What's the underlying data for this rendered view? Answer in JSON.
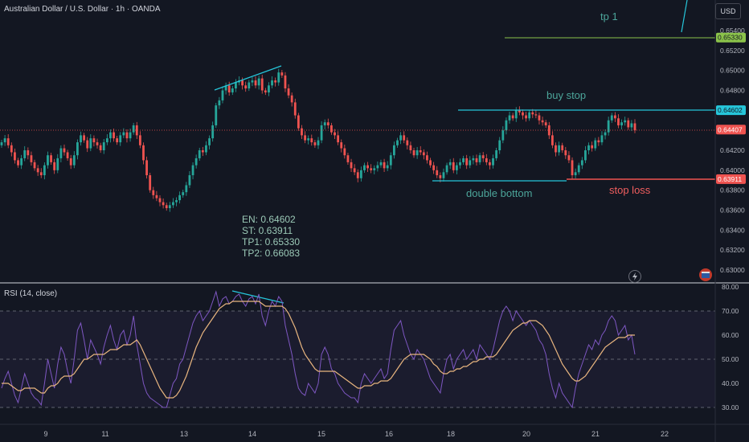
{
  "header": {
    "symbol": "Australian Dollar / U.S. Dollar · 1h · OANDA",
    "currency": "USD"
  },
  "rsi_panel": {
    "title": "RSI (14, close)"
  },
  "notes": {
    "en": "EN: 0.64602",
    "st": "ST: 0.63911",
    "tp1": "TP1: 0.65330",
    "tp2": "TP2: 0.66083"
  },
  "annotations": {
    "tp1": "tp 1",
    "buy_stop": "buy stop",
    "double_bottom": "double bottom",
    "stop_loss": "stop loss"
  },
  "colors": {
    "up": "#26a69a",
    "down": "#ef5350",
    "background": "#131722",
    "rsi": "#7e57c2",
    "rsi_ma": "#e8b57f",
    "tp_line": "#8bc34a",
    "buy_line": "#26c6da",
    "stop_line": "#ef5350"
  },
  "chart_data": [
    {
      "type": "candlestick",
      "title": "Australian Dollar / U.S. Dollar · 1h · OANDA",
      "y_axis_ticks": [
        "0.65400",
        "0.65200",
        "0.65000",
        "0.64800",
        "0.64600",
        "0.64400",
        "0.64200",
        "0.64000",
        "0.63800",
        "0.63600",
        "0.63400",
        "0.63200",
        "0.63000"
      ],
      "ylim": [
        0.6295,
        0.656
      ],
      "x_ticks": [
        "9",
        "11",
        "13",
        "14",
        "15",
        "16",
        "18",
        "20",
        "21",
        "22"
      ],
      "price_labels": {
        "tp1": "0.65330",
        "buy_stop": "0.64602",
        "last_price": "0.64407",
        "stop_loss": "0.63911"
      },
      "levels": {
        "tp1": 0.6533,
        "buy_stop": 0.64602,
        "last_price": 0.64407,
        "stop_loss": 0.63911
      },
      "grid": false,
      "close_series": [
        0.6428,
        0.6432,
        0.6425,
        0.6418,
        0.641,
        0.6405,
        0.6412,
        0.642,
        0.6415,
        0.6408,
        0.6402,
        0.6398,
        0.6395,
        0.6405,
        0.6415,
        0.6408,
        0.64,
        0.6412,
        0.6422,
        0.6418,
        0.6412,
        0.6405,
        0.6415,
        0.6428,
        0.6435,
        0.643,
        0.6422,
        0.6432,
        0.6428,
        0.6425,
        0.642,
        0.6428,
        0.6432,
        0.6438,
        0.6432,
        0.6428,
        0.6435,
        0.6438,
        0.6432,
        0.6438,
        0.6445,
        0.6435,
        0.6425,
        0.641,
        0.6395,
        0.638,
        0.6375,
        0.6372,
        0.6368,
        0.6365,
        0.6362,
        0.6365,
        0.6368,
        0.637,
        0.6375,
        0.6378,
        0.6385,
        0.6395,
        0.6405,
        0.6412,
        0.642,
        0.6418,
        0.6425,
        0.6432,
        0.6445,
        0.6465,
        0.647,
        0.648,
        0.6485,
        0.6478,
        0.6482,
        0.6488,
        0.649,
        0.6485,
        0.6482,
        0.6488,
        0.649,
        0.6485,
        0.6492,
        0.648,
        0.6478,
        0.6485,
        0.649,
        0.6488,
        0.6498,
        0.6495,
        0.6482,
        0.6475,
        0.6468,
        0.6455,
        0.6442,
        0.6435,
        0.643,
        0.6432,
        0.6428,
        0.6425,
        0.643,
        0.6445,
        0.6448,
        0.6445,
        0.6438,
        0.6435,
        0.6428,
        0.6422,
        0.6415,
        0.6408,
        0.6402,
        0.6398,
        0.6392,
        0.64,
        0.6405,
        0.6402,
        0.64,
        0.6402,
        0.6405,
        0.6408,
        0.6402,
        0.6405,
        0.6415,
        0.6425,
        0.643,
        0.6435,
        0.643,
        0.6425,
        0.642,
        0.6415,
        0.642,
        0.6418,
        0.6415,
        0.641,
        0.6405,
        0.64,
        0.6395,
        0.6392,
        0.6398,
        0.6405,
        0.6408,
        0.64,
        0.6405,
        0.6408,
        0.6412,
        0.6405,
        0.641,
        0.6412,
        0.6408,
        0.6415,
        0.6412,
        0.6408,
        0.6405,
        0.6412,
        0.642,
        0.643,
        0.644,
        0.645,
        0.6455,
        0.6452,
        0.646,
        0.6458,
        0.6455,
        0.6452,
        0.6458,
        0.6456,
        0.6455,
        0.645,
        0.6448,
        0.6445,
        0.6435,
        0.6425,
        0.6418,
        0.6425,
        0.642,
        0.6415,
        0.641,
        0.6395,
        0.6398,
        0.6405,
        0.641,
        0.642,
        0.6425,
        0.6422,
        0.643,
        0.6428,
        0.6435,
        0.6438,
        0.645,
        0.6455,
        0.6452,
        0.6445,
        0.6448,
        0.645,
        0.6443,
        0.6447,
        0.644
      ]
    },
    {
      "type": "line",
      "title": "RSI (14, close)",
      "y_axis_ticks": [
        "80.00",
        "70.00",
        "60.00",
        "50.00",
        "40.00",
        "30.00"
      ],
      "ylim": [
        27,
        81
      ],
      "reference_lines": [
        70,
        50,
        30
      ],
      "series": [
        {
          "name": "RSI (14, close)",
          "values": [
            38,
            42,
            45,
            40,
            35,
            32,
            38,
            44,
            40,
            36,
            34,
            33,
            31,
            40,
            50,
            44,
            38,
            48,
            55,
            52,
            45,
            40,
            50,
            62,
            65,
            58,
            50,
            58,
            55,
            52,
            48,
            55,
            60,
            64,
            58,
            54,
            60,
            62,
            56,
            60,
            68,
            56,
            48,
            40,
            36,
            34,
            33,
            32,
            31,
            30,
            30,
            35,
            40,
            42,
            48,
            50,
            55,
            60,
            65,
            68,
            70,
            66,
            68,
            70,
            74,
            78,
            72,
            75,
            76,
            73,
            74,
            76,
            77,
            74,
            72,
            75,
            76,
            73,
            77,
            68,
            64,
            70,
            74,
            72,
            76,
            74,
            64,
            58,
            52,
            44,
            38,
            36,
            35,
            40,
            38,
            36,
            40,
            52,
            55,
            52,
            46,
            44,
            40,
            38,
            36,
            35,
            34,
            34,
            32,
            40,
            44,
            42,
            40,
            42,
            44,
            46,
            42,
            44,
            54,
            62,
            64,
            66,
            60,
            56,
            52,
            50,
            54,
            52,
            50,
            46,
            42,
            40,
            38,
            36,
            44,
            50,
            52,
            46,
            50,
            52,
            54,
            50,
            52,
            54,
            50,
            56,
            54,
            52,
            50,
            54,
            60,
            66,
            70,
            72,
            70,
            66,
            70,
            68,
            66,
            64,
            66,
            64,
            62,
            58,
            56,
            52,
            44,
            38,
            34,
            40,
            36,
            34,
            32,
            30,
            38,
            44,
            48,
            52,
            56,
            54,
            58,
            56,
            60,
            62,
            66,
            68,
            66,
            60,
            62,
            64,
            58,
            60,
            52
          ]
        },
        {
          "name": "",
          "values": [
            40,
            40,
            40,
            39,
            38,
            37,
            37,
            38,
            38,
            38,
            38,
            37,
            36,
            36,
            38,
            39,
            39,
            40,
            42,
            43,
            43,
            43,
            44,
            46,
            48,
            50,
            50,
            51,
            52,
            52,
            52,
            52,
            53,
            54,
            54,
            54,
            55,
            56,
            56,
            56,
            57,
            58,
            56,
            53,
            50,
            47,
            44,
            41,
            38,
            36,
            34,
            34,
            34,
            35,
            37,
            40,
            43,
            47,
            51,
            55,
            58,
            61,
            63,
            65,
            67,
            69,
            71,
            72,
            73,
            73,
            74,
            74,
            74,
            74,
            74,
            74,
            74,
            74,
            74,
            73,
            72,
            72,
            72,
            72,
            72,
            72,
            71,
            69,
            66,
            63,
            59,
            55,
            52,
            50,
            48,
            46,
            45,
            45,
            45,
            45,
            45,
            45,
            44,
            43,
            42,
            41,
            40,
            39,
            38,
            38,
            39,
            39,
            39,
            40,
            40,
            41,
            41,
            41,
            42,
            44,
            46,
            48,
            50,
            51,
            52,
            52,
            52,
            52,
            52,
            51,
            50,
            48,
            47,
            45,
            44,
            44,
            45,
            45,
            46,
            46,
            47,
            47,
            48,
            49,
            49,
            50,
            50,
            51,
            51,
            51,
            52,
            54,
            56,
            58,
            60,
            62,
            63,
            64,
            65,
            65,
            66,
            66,
            66,
            65,
            64,
            62,
            60,
            57,
            54,
            51,
            48,
            46,
            44,
            42,
            41,
            41,
            42,
            43,
            45,
            47,
            49,
            51,
            53,
            55,
            56,
            57,
            58,
            59,
            59,
            59,
            60,
            60,
            60
          ]
        }
      ]
    }
  ]
}
